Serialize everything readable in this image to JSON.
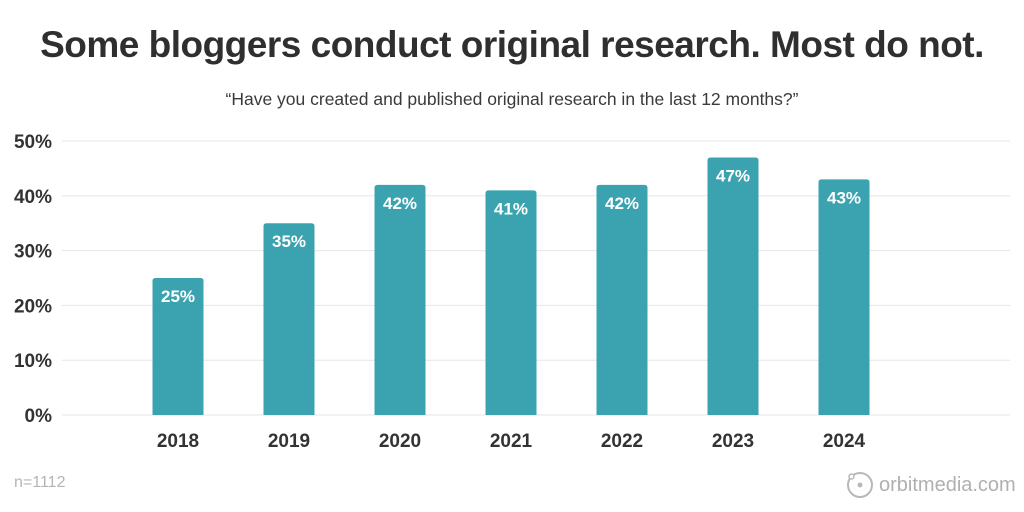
{
  "chart_data": {
    "type": "bar",
    "title": "Some bloggers conduct original research. Most do not.",
    "subtitle": "“Have you created and published original research in the last 12 months?”",
    "categories": [
      "2018",
      "2019",
      "2020",
      "2021",
      "2022",
      "2023",
      "2024"
    ],
    "values": [
      25,
      35,
      42,
      41,
      42,
      47,
      43
    ],
    "data_labels": [
      "25%",
      "35%",
      "42%",
      "41%",
      "42%",
      "47%",
      "43%"
    ],
    "ylim": [
      0,
      50
    ],
    "yticks": [
      0,
      10,
      20,
      30,
      40,
      50
    ],
    "ytick_labels": [
      "0%",
      "10%",
      "20%",
      "30%",
      "40%",
      "50%"
    ],
    "grid": true,
    "bar_color": "#3ba3b0",
    "note": "n=1112"
  },
  "brand": {
    "logo_text": "orbitmedia.com",
    "logo_icon": "orbit-icon"
  }
}
